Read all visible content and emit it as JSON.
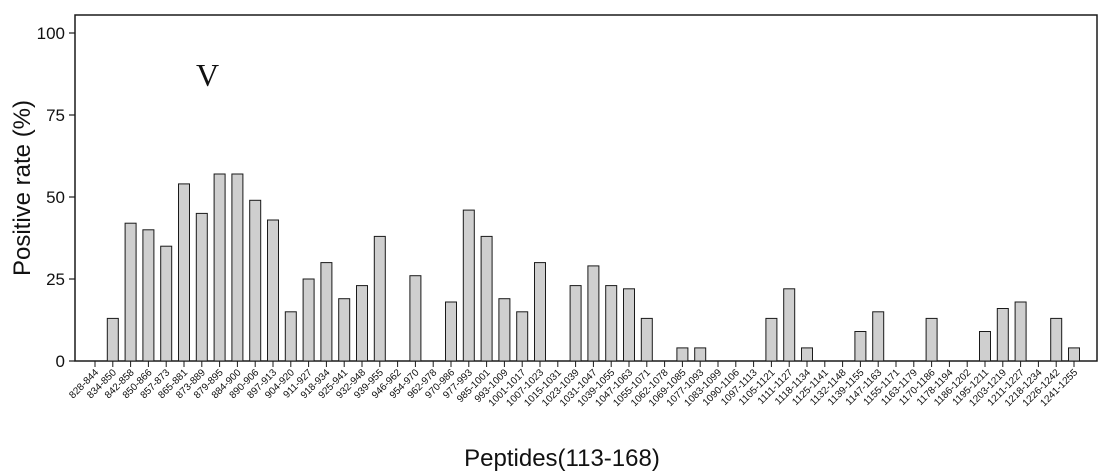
{
  "chart_data": {
    "type": "bar",
    "title": "",
    "annotation": "V",
    "xlabel": "Peptides(113-168)",
    "ylabel": "Positive rate (%)",
    "ylim": [
      0,
      100
    ],
    "yticks": [
      0,
      25,
      50,
      75,
      100
    ],
    "grid": false,
    "categories": [
      "828-844",
      "834-850",
      "842-858",
      "850-866",
      "857-873",
      "865-881",
      "873-889",
      "879-895",
      "884-900",
      "890-906",
      "897-913",
      "904-920",
      "911-927",
      "918-934",
      "925-941",
      "932-948",
      "939-955",
      "946-962",
      "954-970",
      "962-978",
      "970-986",
      "977-993",
      "985-1001",
      "993-1009",
      "1001-1017",
      "1007-1023",
      "1015-1031",
      "1023-1039",
      "1031-1047",
      "1039-1055",
      "1047-1063",
      "1055-1071",
      "1062-1078",
      "1069-1085",
      "1077-1093",
      "1083-1099",
      "1090-1106",
      "1097-1113",
      "1105-1121",
      "1111-1127",
      "1118-1134",
      "1125-1141",
      "1132-1148",
      "1139-1155",
      "1147-1163",
      "1155-1171",
      "1163-1179",
      "1170-1186",
      "1178-1194",
      "1186-1202",
      "1195-1211",
      "1203-1219",
      "1211-1227",
      "1218-1234",
      "1226-1242",
      "1241-1255"
    ],
    "values": [
      0,
      13,
      42,
      40,
      35,
      54,
      45,
      57,
      57,
      49,
      43,
      15,
      25,
      30,
      19,
      23,
      38,
      0,
      26,
      0,
      18,
      46,
      38,
      19,
      15,
      30,
      0,
      23,
      29,
      23,
      22,
      13,
      0,
      4,
      4,
      0,
      0,
      0,
      13,
      22,
      4,
      0,
      0,
      9,
      15,
      0,
      0,
      13,
      0,
      0,
      9,
      16,
      18,
      0,
      13,
      4
    ]
  }
}
